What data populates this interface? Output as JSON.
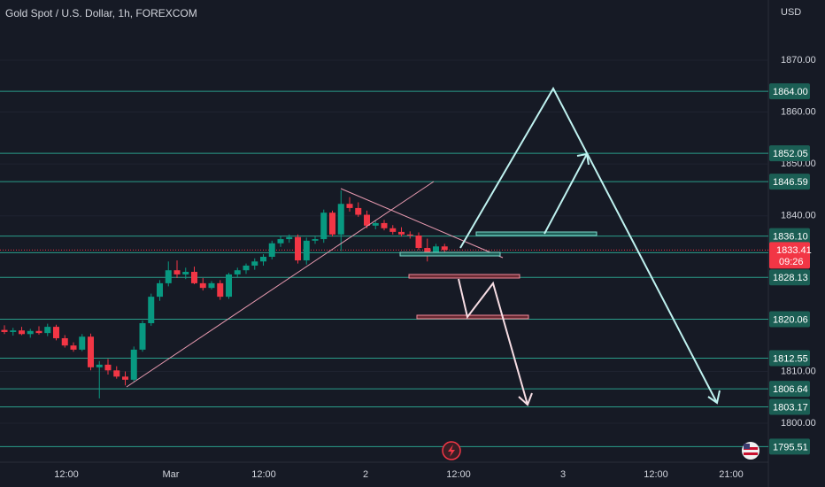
{
  "chart_data": {
    "type": "candlestick",
    "title": "Gold Spot / U.S. Dollar, 1h, FOREXCOM",
    "currency": "USD",
    "open": [
      1818.0,
      1817.6,
      1817.9,
      1817.2,
      1817.8,
      1817.4,
      1818.6,
      1816.4,
      1815.0,
      1814.2,
      1816.7,
      1810.8,
      1811.3,
      1810.2,
      1809.0,
      1808.4,
      1814.2,
      1819.3,
      1824.4,
      1827.0,
      1829.5,
      1828.7,
      1829.2,
      1827.0,
      1826.1,
      1827.0,
      1824.4,
      1828.7,
      1829.5,
      1830.4,
      1831.2,
      1832.1,
      1834.7,
      1835.5,
      1835.9,
      1831.4,
      1835.2,
      1835.5,
      1840.6,
      1836.4,
      1842.3,
      1841.5,
      1840.2,
      1838.1,
      1838.6,
      1837.6,
      1836.9,
      1836.4,
      1836.2,
      1833.8,
      1832.9,
      1834.1
    ],
    "high": [
      1818.9,
      1818.4,
      1818.6,
      1818.2,
      1818.7,
      1819.2,
      1819.0,
      1817.0,
      1815.6,
      1817.2,
      1817.3,
      1812.0,
      1812.4,
      1811.0,
      1810.0,
      1814.8,
      1819.8,
      1825.0,
      1827.6,
      1831.2,
      1831.4,
      1830.0,
      1830.2,
      1828.0,
      1827.4,
      1827.6,
      1829.0,
      1830.0,
      1830.8,
      1831.8,
      1832.6,
      1835.2,
      1836.2,
      1836.4,
      1836.4,
      1835.8,
      1836.0,
      1841.2,
      1841.0,
      1844.9,
      1843.6,
      1842.6,
      1841.0,
      1839.0,
      1839.2,
      1838.2,
      1837.8,
      1837.0,
      1836.8,
      1835.6,
      1834.6,
      1834.6
    ],
    "low": [
      1817.2,
      1816.9,
      1817.0,
      1816.5,
      1817.1,
      1816.8,
      1816.0,
      1814.6,
      1813.8,
      1813.9,
      1810.2,
      1804.8,
      1809.4,
      1808.6,
      1807.3,
      1808.0,
      1813.8,
      1818.8,
      1823.6,
      1826.4,
      1828.0,
      1827.8,
      1826.8,
      1825.6,
      1825.8,
      1823.8,
      1824.0,
      1828.2,
      1828.8,
      1829.6,
      1830.4,
      1831.6,
      1834.0,
      1834.8,
      1830.8,
      1830.6,
      1834.6,
      1834.8,
      1836.0,
      1833.2,
      1840.8,
      1839.8,
      1837.6,
      1837.4,
      1837.2,
      1836.4,
      1836.0,
      1835.6,
      1833.4,
      1831.2,
      1832.6,
      1833.0
    ],
    "close": [
      1817.6,
      1817.9,
      1817.2,
      1817.8,
      1817.4,
      1818.6,
      1816.4,
      1815.0,
      1814.2,
      1816.7,
      1810.8,
      1811.3,
      1810.2,
      1809.0,
      1808.4,
      1814.2,
      1819.3,
      1824.4,
      1827.0,
      1829.5,
      1828.7,
      1829.2,
      1827.0,
      1826.1,
      1827.0,
      1824.4,
      1828.7,
      1829.5,
      1830.4,
      1831.2,
      1832.1,
      1834.7,
      1835.5,
      1835.9,
      1831.4,
      1835.2,
      1835.5,
      1840.6,
      1836.4,
      1842.3,
      1841.5,
      1840.2,
      1838.1,
      1838.6,
      1837.6,
      1836.9,
      1836.4,
      1836.2,
      1833.8,
      1832.9,
      1834.1,
      1833.41
    ],
    "up_color": "#089981",
    "down_color": "#f23645",
    "ylim": [
      1792.5,
      1881.6
    ],
    "yticks": [
      {
        "value": 1870,
        "label": "1870.00"
      },
      {
        "value": 1860,
        "label": "1860.00"
      },
      {
        "value": 1850,
        "label": "1850.00"
      },
      {
        "value": 1840,
        "label": "1840.00"
      },
      {
        "value": 1810,
        "label": "1810.00"
      },
      {
        "value": 1800,
        "label": "1800.00"
      }
    ],
    "x_labels": [
      "12:00",
      "Mar",
      "12:00",
      "2",
      "12:00",
      "3",
      "12:00",
      "21:00"
    ],
    "levels": [
      {
        "value": 1864,
        "label": "1864.00"
      },
      1852.05,
      1846.59,
      {
        "value": 1836.1,
        "label": "1836.10"
      },
      1832.88,
      1828.13,
      1820.06,
      1812.55,
      1806.64,
      1803.17,
      1795.51
    ],
    "level_color": "#2a9d8a",
    "last_price": 1833.41,
    "countdown": "09:26",
    "last_color": "#f23645"
  }
}
